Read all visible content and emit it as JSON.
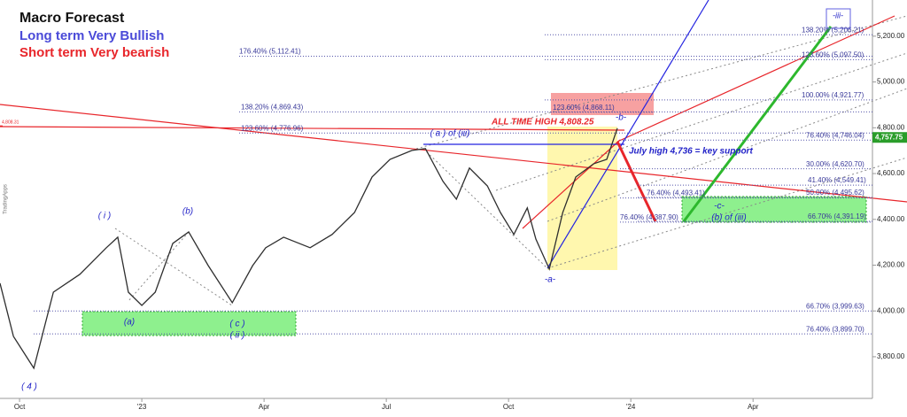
{
  "chart_data": {
    "type": "line",
    "title": "Macro Forecast",
    "subtitles": [
      {
        "text": "Long term Very Bullish",
        "color": "#4a4ad8"
      },
      {
        "text": "Short term Very bearish",
        "color": "#e8262b"
      }
    ],
    "watermark": "TradingApps",
    "series": [
      {
        "name": "Price",
        "color": "#2e2e2e",
        "x": [
          -0.48,
          -0.15,
          0.35,
          0.83,
          1.48,
          2.13,
          2.41,
          2.67,
          3.0,
          3.33,
          3.76,
          4.15,
          4.63,
          5.22,
          5.72,
          6.04,
          6.48,
          7.13,
          7.67,
          8.22,
          8.65,
          9.09,
          9.63,
          9.96,
          10.39,
          10.72,
          11.04,
          11.48,
          11.8,
          12.13,
          12.46,
          12.67,
          13.0,
          13.33,
          13.65,
          14.09,
          14.41,
          14.67
        ],
        "values": [
          4121,
          3889,
          3750,
          4082,
          4160,
          4276,
          4322,
          4082,
          4024,
          4082,
          4295,
          4345,
          4198,
          4036,
          4198,
          4276,
          4322,
          4276,
          4334,
          4430,
          4585,
          4662,
          4701,
          4709,
          4566,
          4488,
          4624,
          4546,
          4430,
          4334,
          4450,
          4314,
          4183,
          4430,
          4585,
          4643,
          4662,
          4798
        ]
      }
    ],
    "last_price": {
      "value": 4757.75,
      "label": "4,757.75"
    },
    "left_price": {
      "value": 4808.31,
      "label": "4,808.31"
    },
    "xlim": [
      -0.48,
      20.93
    ],
    "xticks": [
      {
        "value": 0,
        "label": "Oct"
      },
      {
        "value": 3,
        "label": "'23"
      },
      {
        "value": 6,
        "label": "Apr"
      },
      {
        "value": 9,
        "label": "Jul"
      },
      {
        "value": 12,
        "label": "Oct"
      },
      {
        "value": 15,
        "label": "'24"
      },
      {
        "value": 18,
        "label": "Apr"
      }
    ],
    "ylim": [
      3618,
      5358
    ],
    "yticks": [
      {
        "value": 3800,
        "label": "3,800.00"
      },
      {
        "value": 4000,
        "label": "4,000.00"
      },
      {
        "value": 4200,
        "label": "4,200.00"
      },
      {
        "value": 4400,
        "label": "4,400.00"
      },
      {
        "value": 4600,
        "label": "4,600.00"
      },
      {
        "value": 4800,
        "label": "4,800.00"
      },
      {
        "value": 5000,
        "label": "5,000.00"
      },
      {
        "value": 5200,
        "label": "5,200.00"
      }
    ],
    "levels": [
      {
        "label": "176.40% (5,112.41)",
        "value": 5112.41
      },
      {
        "label": "138.20% (4,869.43)",
        "value": 4869.43
      },
      {
        "label": "123.60% (4,776.96)",
        "value": 4776.96
      },
      {
        "label": "138.20% (5,206.21)",
        "value": 5206.21
      },
      {
        "label": "123.60% (5,097.50)",
        "value": 5097.5
      },
      {
        "label": "100.00% (4,921.77)",
        "value": 4921.77
      },
      {
        "label": "76.40% (4,746.04)",
        "value": 4746.04
      },
      {
        "label": "30.00% (4,620.70)",
        "value": 4620.7
      },
      {
        "label": "41.40% (4,549.41)",
        "value": 4549.41
      },
      {
        "label": "50.00% (4,495.62)",
        "value": 4495.62
      },
      {
        "label": "66.70% (4,391.19)",
        "value": 4391.19
      },
      {
        "label": "66.70% (3,999.63)",
        "value": 3999.63
      },
      {
        "label": "76.40% (3,899.70)",
        "value": 3899.7
      },
      {
        "label": "123.60% (4,868.11)",
        "value": 4868.11
      },
      {
        "label": "76.40% (4,493.41)",
        "value": 4493.41
      },
      {
        "label": "76.40% (4,387.90)",
        "value": 4387.9
      }
    ],
    "annotations": [
      {
        "text": "( 4 )",
        "color": "#2323c8"
      },
      {
        "text": "( i )",
        "color": "#2323c8"
      },
      {
        "text": "(a)",
        "color": "#2323c8"
      },
      {
        "text": "(b)",
        "color": "#2323c8"
      },
      {
        "text": "( c )",
        "color": "#2323c8"
      },
      {
        "text": "( ii )",
        "color": "#2323c8"
      },
      {
        "text": "( a ) of (iii)",
        "color": "#2323c8"
      },
      {
        "text": "-a-",
        "color": "#2323c8"
      },
      {
        "text": "-b-",
        "color": "#2323c8"
      },
      {
        "text": "-c-",
        "color": "#2323c8"
      },
      {
        "text": "(b) of (iii)",
        "color": "#2323c8"
      },
      {
        "text": "-iii-",
        "color": "#2323c8"
      },
      {
        "text": "ALL TIME HIGH  4,808.25",
        "color": "#e8262b"
      },
      {
        "text": "July high 4,736 = key support",
        "color": "#2323c8"
      }
    ]
  }
}
